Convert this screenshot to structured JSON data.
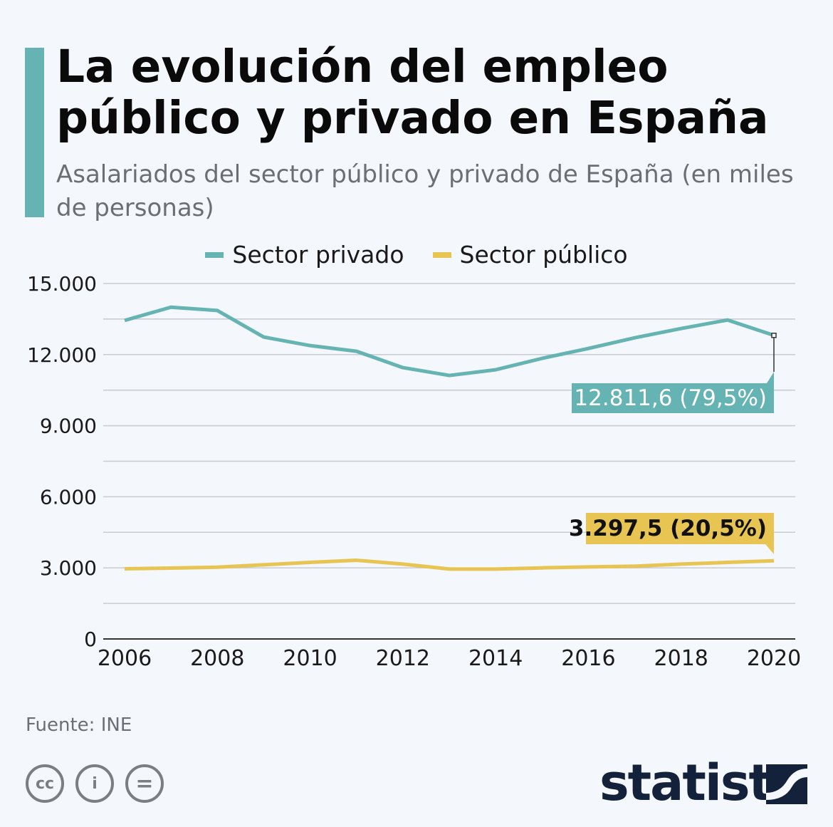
{
  "header": {
    "title": "La evolución del empleo público y privado en España",
    "subtitle": "Asalariados del sector público y privado de España (en miles de personas)"
  },
  "footer": {
    "source": "Fuente: INE",
    "brand": "statista",
    "license_icons": [
      "cc-icon",
      "by-icon",
      "nd-icon"
    ]
  },
  "chart_data": {
    "type": "line",
    "title": "La evolución del empleo público y privado en España",
    "subtitle": "Asalariados del sector público y privado de España (en miles de personas)",
    "x": [
      2006,
      2007,
      2008,
      2009,
      2010,
      2011,
      2012,
      2013,
      2014,
      2015,
      2016,
      2017,
      2018,
      2019,
      2020
    ],
    "xticks": [
      "2006",
      "2008",
      "2010",
      "2012",
      "2014",
      "2016",
      "2018",
      "2020"
    ],
    "yticks": [
      "0",
      "3.000",
      "6.000",
      "9.000",
      "12.000",
      "15.000"
    ],
    "ylim": [
      0,
      15000
    ],
    "grid": true,
    "legend": "top",
    "series": [
      {
        "name": "Sector privado",
        "color": "#65b3b2",
        "values": [
          13440,
          14000,
          13860,
          12740,
          12380,
          12140,
          11450,
          11120,
          11360,
          11840,
          12260,
          12710,
          13100,
          13460,
          12811.6
        ],
        "annotation": "12.811,6 (79,5%)"
      },
      {
        "name": "Sector público",
        "color": "#e8c553",
        "values": [
          2960,
          2990,
          3030,
          3130,
          3230,
          3320,
          3160,
          2950,
          2950,
          3000,
          3040,
          3070,
          3160,
          3230,
          3297.5
        ],
        "annotation": "3.297,5 (20,5%)"
      }
    ]
  }
}
